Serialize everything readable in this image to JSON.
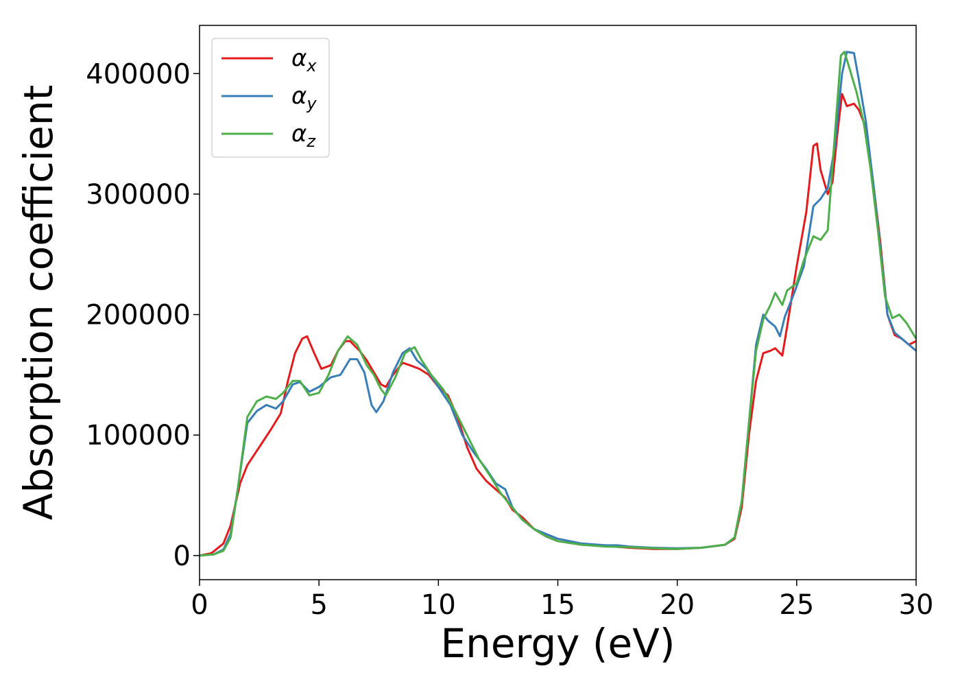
{
  "chart_data": {
    "type": "line",
    "title": "",
    "xlabel": "Energy (eV)",
    "ylabel": "Absorption coefficient",
    "xlim": [
      0,
      30
    ],
    "ylim": [
      -20000,
      440000
    ],
    "xticks": [
      0,
      5,
      10,
      15,
      20,
      25,
      30
    ],
    "yticks": [
      0,
      100000,
      200000,
      300000,
      400000
    ],
    "xtick_labels": [
      "0",
      "5",
      "10",
      "15",
      "20",
      "25",
      "30"
    ],
    "ytick_labels": [
      "0",
      "100000",
      "200000",
      "300000",
      "400000"
    ],
    "grid": false,
    "legend_position": "top-left",
    "series": [
      {
        "name": "αx",
        "symbol": "α",
        "subscript": "x",
        "color": "#e41a1c",
        "points": [
          [
            0,
            0
          ],
          [
            0.5,
            2000
          ],
          [
            1,
            10000
          ],
          [
            1.3,
            25000
          ],
          [
            1.7,
            60000
          ],
          [
            2,
            75000
          ],
          [
            2.5,
            90000
          ],
          [
            3,
            105000
          ],
          [
            3.4,
            118000
          ],
          [
            3.7,
            145000
          ],
          [
            4,
            168000
          ],
          [
            4.3,
            180000
          ],
          [
            4.5,
            182000
          ],
          [
            4.8,
            168000
          ],
          [
            5.1,
            155000
          ],
          [
            5.5,
            158000
          ],
          [
            5.8,
            170000
          ],
          [
            6.1,
            178000
          ],
          [
            6.3,
            178000
          ],
          [
            6.7,
            170000
          ],
          [
            7,
            162000
          ],
          [
            7.3,
            152000
          ],
          [
            7.6,
            142000
          ],
          [
            7.8,
            140000
          ],
          [
            8.1,
            150000
          ],
          [
            8.5,
            160000
          ],
          [
            8.8,
            158000
          ],
          [
            9.2,
            155000
          ],
          [
            9.6,
            150000
          ],
          [
            10,
            140000
          ],
          [
            10.4,
            133000
          ],
          [
            10.8,
            115000
          ],
          [
            11.2,
            90000
          ],
          [
            11.6,
            72000
          ],
          [
            12,
            62000
          ],
          [
            12.4,
            55000
          ],
          [
            12.8,
            48000
          ],
          [
            13.1,
            38000
          ],
          [
            13.5,
            32000
          ],
          [
            14,
            22000
          ],
          [
            14.5,
            16000
          ],
          [
            15,
            12000
          ],
          [
            16,
            9000
          ],
          [
            17,
            8000
          ],
          [
            18,
            6500
          ],
          [
            19,
            5500
          ],
          [
            20,
            5500
          ],
          [
            21,
            6500
          ],
          [
            22,
            9000
          ],
          [
            22.4,
            14000
          ],
          [
            22.7,
            40000
          ],
          [
            23,
            100000
          ],
          [
            23.3,
            145000
          ],
          [
            23.6,
            168000
          ],
          [
            23.9,
            170000
          ],
          [
            24.1,
            172000
          ],
          [
            24.4,
            166000
          ],
          [
            24.6,
            190000
          ],
          [
            25,
            240000
          ],
          [
            25.4,
            285000
          ],
          [
            25.7,
            340000
          ],
          [
            25.85,
            342000
          ],
          [
            26,
            320000
          ],
          [
            26.3,
            300000
          ],
          [
            26.5,
            310000
          ],
          [
            26.7,
            350000
          ],
          [
            26.9,
            383000
          ],
          [
            27.1,
            373000
          ],
          [
            27.4,
            375000
          ],
          [
            27.6,
            370000
          ],
          [
            27.9,
            355000
          ],
          [
            28.2,
            310000
          ],
          [
            28.5,
            260000
          ],
          [
            28.8,
            200000
          ],
          [
            29.1,
            183000
          ],
          [
            29.4,
            180000
          ],
          [
            29.7,
            175000
          ],
          [
            30,
            178000
          ]
        ]
      },
      {
        "name": "αy",
        "symbol": "α",
        "subscript": "y",
        "color": "#377eb8",
        "points": [
          [
            0,
            0
          ],
          [
            0.6,
            1000
          ],
          [
            1,
            5000
          ],
          [
            1.3,
            18000
          ],
          [
            1.6,
            55000
          ],
          [
            2,
            110000
          ],
          [
            2.4,
            120000
          ],
          [
            2.8,
            125000
          ],
          [
            3.2,
            122000
          ],
          [
            3.5,
            128000
          ],
          [
            3.9,
            142000
          ],
          [
            4.2,
            144000
          ],
          [
            4.6,
            136000
          ],
          [
            5,
            140000
          ],
          [
            5.5,
            148000
          ],
          [
            5.9,
            150000
          ],
          [
            6.3,
            163000
          ],
          [
            6.6,
            163000
          ],
          [
            6.9,
            152000
          ],
          [
            7.2,
            125000
          ],
          [
            7.4,
            119000
          ],
          [
            7.7,
            128000
          ],
          [
            8.1,
            152000
          ],
          [
            8.5,
            168000
          ],
          [
            8.8,
            172000
          ],
          [
            9.1,
            162000
          ],
          [
            9.5,
            155000
          ],
          [
            10,
            140000
          ],
          [
            10.5,
            125000
          ],
          [
            11,
            100000
          ],
          [
            11.5,
            85000
          ],
          [
            12,
            72000
          ],
          [
            12.4,
            60000
          ],
          [
            12.8,
            55000
          ],
          [
            13.1,
            40000
          ],
          [
            13.5,
            30000
          ],
          [
            14,
            22000
          ],
          [
            14.5,
            18000
          ],
          [
            15,
            14000
          ],
          [
            16,
            10000
          ],
          [
            17,
            8500
          ],
          [
            17.5,
            8500
          ],
          [
            18,
            7500
          ],
          [
            19,
            6500
          ],
          [
            20,
            6000
          ],
          [
            21,
            6500
          ],
          [
            22,
            9000
          ],
          [
            22.4,
            15000
          ],
          [
            22.7,
            45000
          ],
          [
            23,
            110000
          ],
          [
            23.3,
            175000
          ],
          [
            23.6,
            200000
          ],
          [
            23.8,
            195000
          ],
          [
            24.1,
            190000
          ],
          [
            24.3,
            182000
          ],
          [
            24.5,
            198000
          ],
          [
            24.9,
            218000
          ],
          [
            25.3,
            240000
          ],
          [
            25.7,
            290000
          ],
          [
            26,
            296000
          ],
          [
            26.3,
            305000
          ],
          [
            26.6,
            340000
          ],
          [
            26.9,
            400000
          ],
          [
            27.1,
            418000
          ],
          [
            27.4,
            417000
          ],
          [
            27.6,
            395000
          ],
          [
            27.9,
            360000
          ],
          [
            28.2,
            310000
          ],
          [
            28.5,
            255000
          ],
          [
            28.8,
            200000
          ],
          [
            29.1,
            185000
          ],
          [
            29.4,
            180000
          ],
          [
            29.7,
            175000
          ],
          [
            30,
            170000
          ]
        ]
      },
      {
        "name": "αz",
        "symbol": "α",
        "subscript": "z",
        "color": "#4daf4a",
        "points": [
          [
            0,
            0
          ],
          [
            0.6,
            1000
          ],
          [
            1,
            4000
          ],
          [
            1.3,
            15000
          ],
          [
            1.6,
            55000
          ],
          [
            2,
            115000
          ],
          [
            2.4,
            128000
          ],
          [
            2.8,
            132000
          ],
          [
            3.2,
            130000
          ],
          [
            3.5,
            135000
          ],
          [
            3.9,
            145000
          ],
          [
            4.2,
            145000
          ],
          [
            4.6,
            133000
          ],
          [
            5,
            135000
          ],
          [
            5.4,
            150000
          ],
          [
            5.8,
            170000
          ],
          [
            6.2,
            182000
          ],
          [
            6.6,
            175000
          ],
          [
            7,
            158000
          ],
          [
            7.3,
            150000
          ],
          [
            7.6,
            138000
          ],
          [
            7.8,
            133000
          ],
          [
            8.2,
            148000
          ],
          [
            8.6,
            168000
          ],
          [
            9,
            173000
          ],
          [
            9.3,
            162000
          ],
          [
            9.7,
            150000
          ],
          [
            10.2,
            138000
          ],
          [
            10.7,
            120000
          ],
          [
            11.2,
            100000
          ],
          [
            11.7,
            80000
          ],
          [
            12.2,
            65000
          ],
          [
            12.6,
            52000
          ],
          [
            13,
            42000
          ],
          [
            13.5,
            30000
          ],
          [
            14,
            22000
          ],
          [
            14.5,
            16000
          ],
          [
            15,
            12000
          ],
          [
            16,
            9000
          ],
          [
            17,
            7500
          ],
          [
            18,
            7000
          ],
          [
            19,
            6000
          ],
          [
            20,
            5500
          ],
          [
            21,
            6500
          ],
          [
            22,
            9000
          ],
          [
            22.4,
            15000
          ],
          [
            22.7,
            45000
          ],
          [
            23,
            110000
          ],
          [
            23.3,
            170000
          ],
          [
            23.6,
            196000
          ],
          [
            23.9,
            208000
          ],
          [
            24.1,
            218000
          ],
          [
            24.4,
            208000
          ],
          [
            24.6,
            220000
          ],
          [
            25,
            226000
          ],
          [
            25.3,
            245000
          ],
          [
            25.7,
            265000
          ],
          [
            26,
            262000
          ],
          [
            26.3,
            270000
          ],
          [
            26.6,
            350000
          ],
          [
            26.85,
            415000
          ],
          [
            27,
            418000
          ],
          [
            27.2,
            405000
          ],
          [
            27.5,
            385000
          ],
          [
            27.8,
            360000
          ],
          [
            28.1,
            320000
          ],
          [
            28.4,
            270000
          ],
          [
            28.7,
            215000
          ],
          [
            29,
            197000
          ],
          [
            29.3,
            200000
          ],
          [
            29.6,
            193000
          ],
          [
            30,
            180000
          ]
        ]
      }
    ]
  }
}
